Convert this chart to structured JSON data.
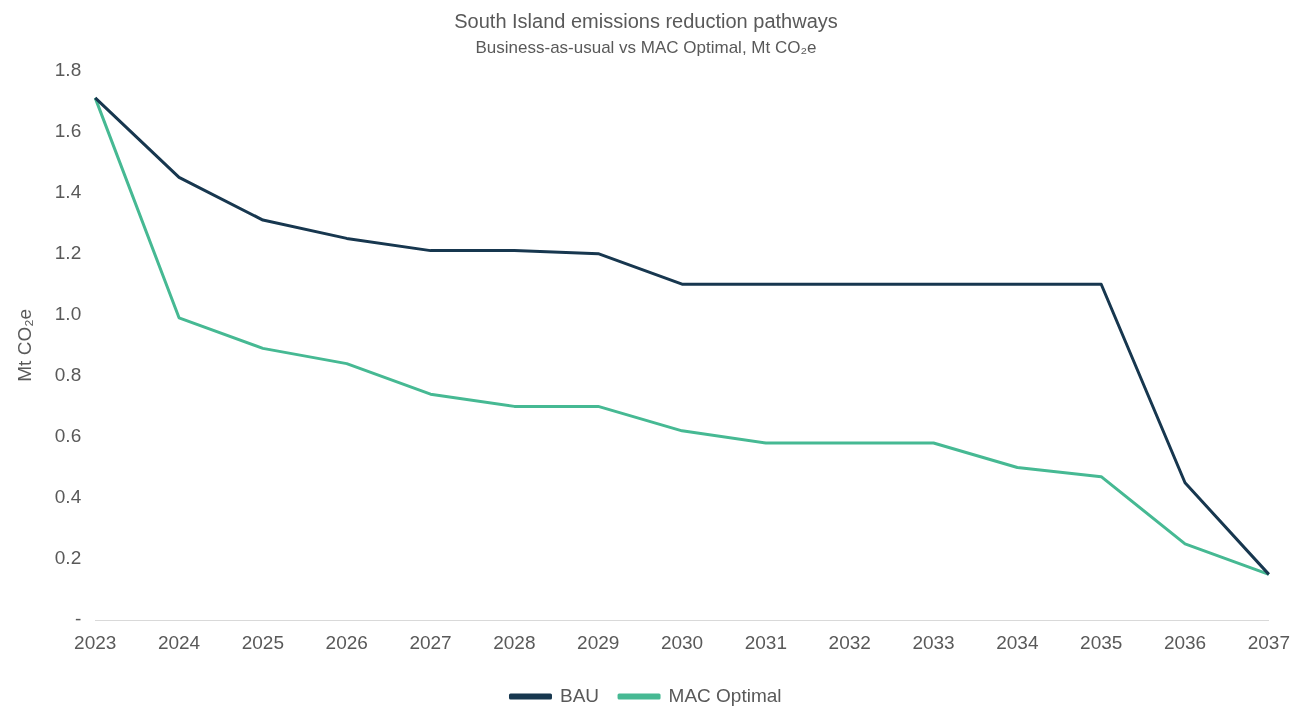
{
  "chart_data": {
    "type": "line",
    "title": "South Island emissions reduction pathways",
    "subtitle": "Business-as-usual vs MAC Optimal, Mt CO₂e",
    "ylabel": "Mt CO₂e",
    "categories": [
      "2023",
      "2024",
      "2025",
      "2026",
      "2027",
      "2028",
      "2029",
      "2030",
      "2031",
      "2032",
      "2033",
      "2034",
      "2035",
      "2036",
      "2037"
    ],
    "series": [
      {
        "name": "BAU",
        "color": "#17374f",
        "values": [
          1.71,
          1.45,
          1.31,
          1.25,
          1.21,
          1.21,
          1.2,
          1.1,
          1.1,
          1.1,
          1.1,
          1.1,
          1.1,
          0.45,
          0.15
        ]
      },
      {
        "name": "MAC Optimal",
        "color": "#46b993",
        "values": [
          1.71,
          0.99,
          0.89,
          0.84,
          0.74,
          0.7,
          0.7,
          0.62,
          0.58,
          0.58,
          0.58,
          0.5,
          0.47,
          0.25,
          0.15
        ]
      }
    ],
    "ylim": [
      0,
      1.8
    ],
    "yticks": [
      {
        "value": 0,
        "label": "-"
      },
      0.2,
      0.4,
      0.6,
      0.8,
      {
        "value": 1,
        "label": "1.0"
      },
      1.2,
      1.4,
      1.6,
      1.8
    ],
    "grid": false,
    "legend": "bottom",
    "marker": "none",
    "line_style": "solid"
  }
}
